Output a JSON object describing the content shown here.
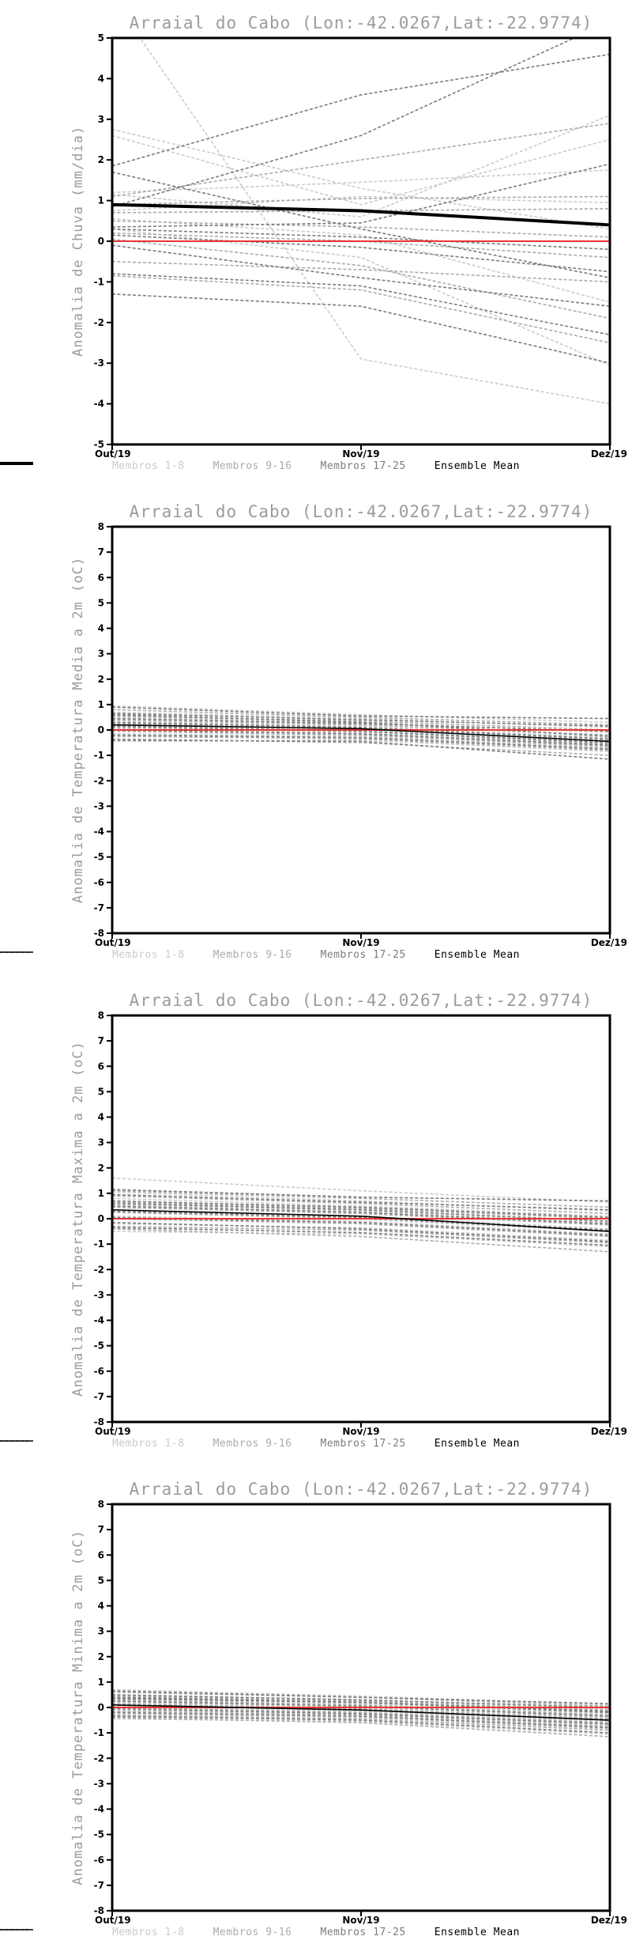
{
  "page": {
    "background": "#ffffff"
  },
  "legend": {
    "items": [
      {
        "label": "Membros 1-8",
        "color": "#cbcbcb",
        "dashed": true
      },
      {
        "label": "Membros 9-16",
        "color": "#ababab",
        "dashed": true
      },
      {
        "label": "Membros 17-25",
        "color": "#7c7c7c",
        "dashed": true
      },
      {
        "label": "Ensemble Mean",
        "color": "#000000",
        "dashed": false
      }
    ]
  },
  "chart_data": [
    {
      "type": "line",
      "title": "Arraial do Cabo (Lon:-42.0267,Lat:-22.9774)",
      "ylabel": "Anomalia de Chuva (mm/dia)",
      "x": [
        "Out/19",
        "Nov/19",
        "Dez/19"
      ],
      "ylim": [
        -5,
        5
      ],
      "ytick_step": 1,
      "grid": false,
      "legend_position": "bottom",
      "zero_line": {
        "value": 0,
        "color": "#e83535"
      },
      "mean": {
        "name": "Ensemble Mean",
        "values": [
          0.9,
          0.75,
          0.4
        ],
        "width": 4
      },
      "groups": [
        {
          "name": "Membros 1-8",
          "color": "#cbcbcb",
          "members": [
            [
              2.75,
              1.3,
              0.3
            ],
            [
              2.6,
              0.9,
              2.5
            ],
            [
              1.2,
              1.45,
              1.75
            ],
            [
              1.15,
              0.6,
              3.1
            ],
            [
              0.75,
              1.1,
              0.95
            ],
            [
              0.55,
              0.15,
              -1.5
            ],
            [
              0.3,
              -0.4,
              -3.05
            ],
            [
              6.0,
              -2.9,
              -4.0
            ]
          ]
        },
        {
          "name": "Membros 9-16",
          "color": "#ababab",
          "members": [
            [
              1.1,
              2.0,
              2.9
            ],
            [
              0.9,
              1.05,
              1.1
            ],
            [
              0.7,
              0.75,
              0.8
            ],
            [
              0.5,
              0.35,
              0.1
            ],
            [
              0.2,
              0.0,
              -0.4
            ],
            [
              0.05,
              -0.6,
              -1.9
            ],
            [
              -0.5,
              -0.7,
              -1.0
            ],
            [
              -0.85,
              -1.2,
              -2.5
            ]
          ]
        },
        {
          "name": "Membros 17-25",
          "color": "#7c7c7c",
          "members": [
            [
              1.85,
              3.6,
              4.6
            ],
            [
              1.7,
              0.3,
              -0.9
            ],
            [
              0.85,
              2.6,
              5.4
            ],
            [
              0.35,
              0.45,
              1.9
            ],
            [
              0.3,
              0.1,
              -0.2
            ],
            [
              0.15,
              -0.15,
              -0.75
            ],
            [
              -0.1,
              -0.9,
              -1.6
            ],
            [
              -0.8,
              -1.1,
              -2.3
            ],
            [
              -1.3,
              -1.6,
              -3.0
            ]
          ]
        }
      ]
    },
    {
      "type": "line",
      "title": "Arraial do Cabo (Lon:-42.0267,Lat:-22.9774)",
      "ylabel": "Anomalia de Temperatura Media a 2m (oC)",
      "x": [
        "Out/19",
        "Nov/19",
        "Dez/19"
      ],
      "ylim": [
        -8,
        8
      ],
      "ytick_step": 1,
      "grid": false,
      "legend_position": "bottom",
      "zero_line": {
        "value": 0,
        "color": "#e83535"
      },
      "mean": {
        "name": "Ensemble Mean",
        "values": [
          0.2,
          0.05,
          -0.45
        ],
        "width": 1.6
      },
      "groups": [
        {
          "name": "Membros 1-8",
          "color": "#cbcbcb",
          "members": [
            [
              0.95,
              0.6,
              0.3
            ],
            [
              0.7,
              0.45,
              0.1
            ],
            [
              0.5,
              0.3,
              -0.1
            ],
            [
              0.35,
              0.15,
              -0.3
            ],
            [
              0.2,
              0.0,
              -0.45
            ],
            [
              0.05,
              -0.1,
              -0.6
            ],
            [
              -0.15,
              -0.25,
              -0.7
            ],
            [
              -0.45,
              -0.4,
              -0.85
            ]
          ]
        },
        {
          "name": "Membros 9-16",
          "color": "#ababab",
          "members": [
            [
              0.8,
              0.5,
              0.2
            ],
            [
              0.55,
              0.35,
              0.0
            ],
            [
              0.4,
              0.2,
              -0.2
            ],
            [
              0.25,
              0.05,
              -0.4
            ],
            [
              0.1,
              -0.05,
              -0.55
            ],
            [
              -0.05,
              -0.2,
              -0.65
            ],
            [
              -0.25,
              -0.35,
              -0.8
            ],
            [
              -0.35,
              -0.5,
              -1.0
            ]
          ]
        },
        {
          "name": "Membros 17-25",
          "color": "#7c7c7c",
          "members": [
            [
              0.9,
              0.55,
              0.45
            ],
            [
              0.65,
              0.4,
              0.15
            ],
            [
              0.45,
              0.25,
              -0.05
            ],
            [
              0.3,
              0.1,
              -0.35
            ],
            [
              0.15,
              -0.05,
              -0.5
            ],
            [
              0.0,
              -0.15,
              -0.6
            ],
            [
              -0.2,
              -0.3,
              -0.75
            ],
            [
              -0.4,
              -0.45,
              -1.15
            ],
            [
              0.6,
              0.3,
              -0.25
            ]
          ]
        }
      ]
    },
    {
      "type": "line",
      "title": "Arraial do Cabo (Lon:-42.0267,Lat:-22.9774)",
      "ylabel": "Anomalia de Temperatura Maxima a 2m (oC)",
      "x": [
        "Out/19",
        "Nov/19",
        "Dez/19"
      ],
      "ylim": [
        -8,
        8
      ],
      "ytick_step": 1,
      "grid": false,
      "legend_position": "bottom",
      "zero_line": {
        "value": 0,
        "color": "#e83535"
      },
      "mean": {
        "name": "Ensemble Mean",
        "values": [
          0.35,
          0.1,
          -0.5
        ],
        "width": 1.6
      },
      "groups": [
        {
          "name": "Membros 1-8",
          "color": "#cbcbcb",
          "members": [
            [
              1.6,
              1.1,
              0.65
            ],
            [
              1.05,
              0.7,
              0.3
            ],
            [
              0.8,
              0.5,
              0.1
            ],
            [
              0.55,
              0.3,
              -0.15
            ],
            [
              0.35,
              0.1,
              -0.4
            ],
            [
              0.1,
              -0.1,
              -0.6
            ],
            [
              -0.2,
              -0.35,
              -0.85
            ],
            [
              -0.5,
              -0.6,
              -1.1
            ]
          ]
        },
        {
          "name": "Membros 9-16",
          "color": "#ababab",
          "members": [
            [
              1.1,
              0.8,
              0.45
            ],
            [
              0.9,
              0.6,
              0.2
            ],
            [
              0.65,
              0.4,
              0.0
            ],
            [
              0.45,
              0.2,
              -0.25
            ],
            [
              0.25,
              0.0,
              -0.5
            ],
            [
              0.0,
              -0.2,
              -0.7
            ],
            [
              -0.3,
              -0.45,
              -0.95
            ],
            [
              -0.4,
              -0.7,
              -1.3
            ]
          ]
        },
        {
          "name": "Membros 17-25",
          "color": "#7c7c7c",
          "members": [
            [
              1.15,
              0.85,
              0.7
            ],
            [
              0.95,
              0.65,
              0.35
            ],
            [
              0.7,
              0.45,
              0.05
            ],
            [
              0.5,
              0.25,
              -0.2
            ],
            [
              0.3,
              0.05,
              -0.45
            ],
            [
              0.05,
              -0.15,
              -0.65
            ],
            [
              -0.15,
              -0.4,
              -0.9
            ],
            [
              -0.35,
              -0.55,
              -1.05
            ],
            [
              0.6,
              0.35,
              -0.1
            ]
          ]
        }
      ]
    },
    {
      "type": "line",
      "title": "Arraial do Cabo (Lon:-42.0267,Lat:-22.9774)",
      "ylabel": "Anomalia de Temperatura Minima a 2m (oC)",
      "x": [
        "Out/19",
        "Nov/19",
        "Dez/19"
      ],
      "ylim": [
        -8,
        8
      ],
      "ytick_step": 1,
      "grid": false,
      "legend_position": "bottom",
      "zero_line": {
        "value": 0,
        "color": "#e83535"
      },
      "mean": {
        "name": "Ensemble Mean",
        "values": [
          0.1,
          -0.1,
          -0.5
        ],
        "width": 1.6
      },
      "groups": [
        {
          "name": "Membros 1-8",
          "color": "#cbcbcb",
          "members": [
            [
              0.7,
              0.45,
              0.1
            ],
            [
              0.5,
              0.3,
              -0.05
            ],
            [
              0.35,
              0.15,
              -0.25
            ],
            [
              0.2,
              0.0,
              -0.4
            ],
            [
              0.05,
              -0.15,
              -0.55
            ],
            [
              -0.1,
              -0.25,
              -0.7
            ],
            [
              -0.25,
              -0.4,
              -0.85
            ],
            [
              -0.45,
              -0.55,
              -1.05
            ]
          ]
        },
        {
          "name": "Membros 9-16",
          "color": "#ababab",
          "members": [
            [
              0.6,
              0.4,
              0.05
            ],
            [
              0.45,
              0.25,
              -0.1
            ],
            [
              0.3,
              0.1,
              -0.3
            ],
            [
              0.15,
              -0.05,
              -0.45
            ],
            [
              0.0,
              -0.2,
              -0.6
            ],
            [
              -0.15,
              -0.3,
              -0.75
            ],
            [
              -0.3,
              -0.45,
              -0.9
            ],
            [
              -0.4,
              -0.6,
              -1.15
            ]
          ]
        },
        {
          "name": "Membros 17-25",
          "color": "#7c7c7c",
          "members": [
            [
              0.65,
              0.4,
              0.15
            ],
            [
              0.5,
              0.3,
              0.0
            ],
            [
              0.35,
              0.2,
              -0.2
            ],
            [
              0.25,
              0.05,
              -0.35
            ],
            [
              0.1,
              -0.1,
              -0.5
            ],
            [
              -0.05,
              -0.25,
              -0.65
            ],
            [
              -0.2,
              -0.35,
              -0.8
            ],
            [
              -0.35,
              -0.5,
              -1.0
            ],
            [
              0.4,
              0.2,
              -0.15
            ]
          ]
        }
      ]
    }
  ]
}
